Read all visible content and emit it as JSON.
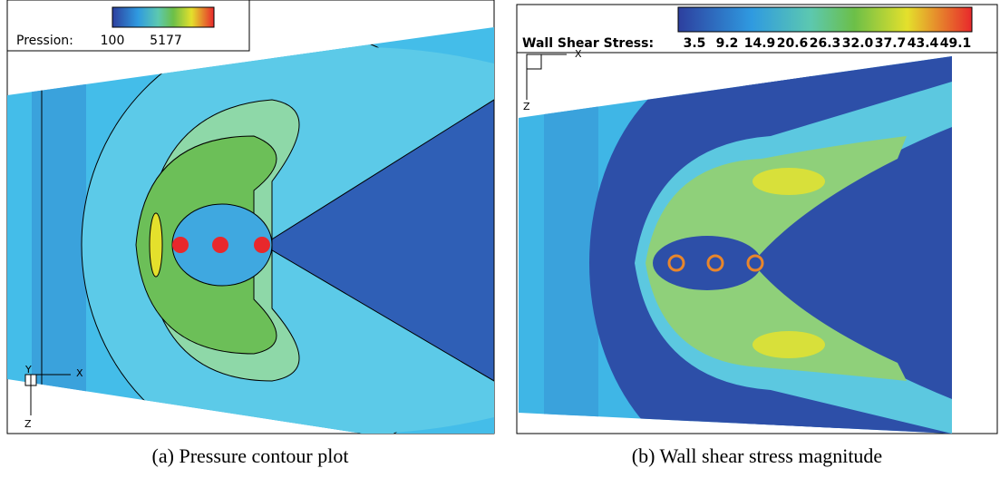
{
  "panels": [
    {
      "legend": {
        "label": "Pression:",
        "ticks": [
          "100",
          "5177"
        ]
      },
      "axes": {
        "y": "Y",
        "x": "X",
        "z": "Z"
      },
      "caption": "(a) Pressure contour plot"
    },
    {
      "legend": {
        "label": "Wall Shear Stress:",
        "ticks": [
          "3.5",
          "9.2",
          "14.9",
          "20.6",
          "26.3",
          "32.0",
          "37.7",
          "43.4",
          "49.1"
        ]
      },
      "axes": {
        "x": "X",
        "z": "Z"
      },
      "caption": "(b) Wall shear stress magnitude"
    }
  ]
}
